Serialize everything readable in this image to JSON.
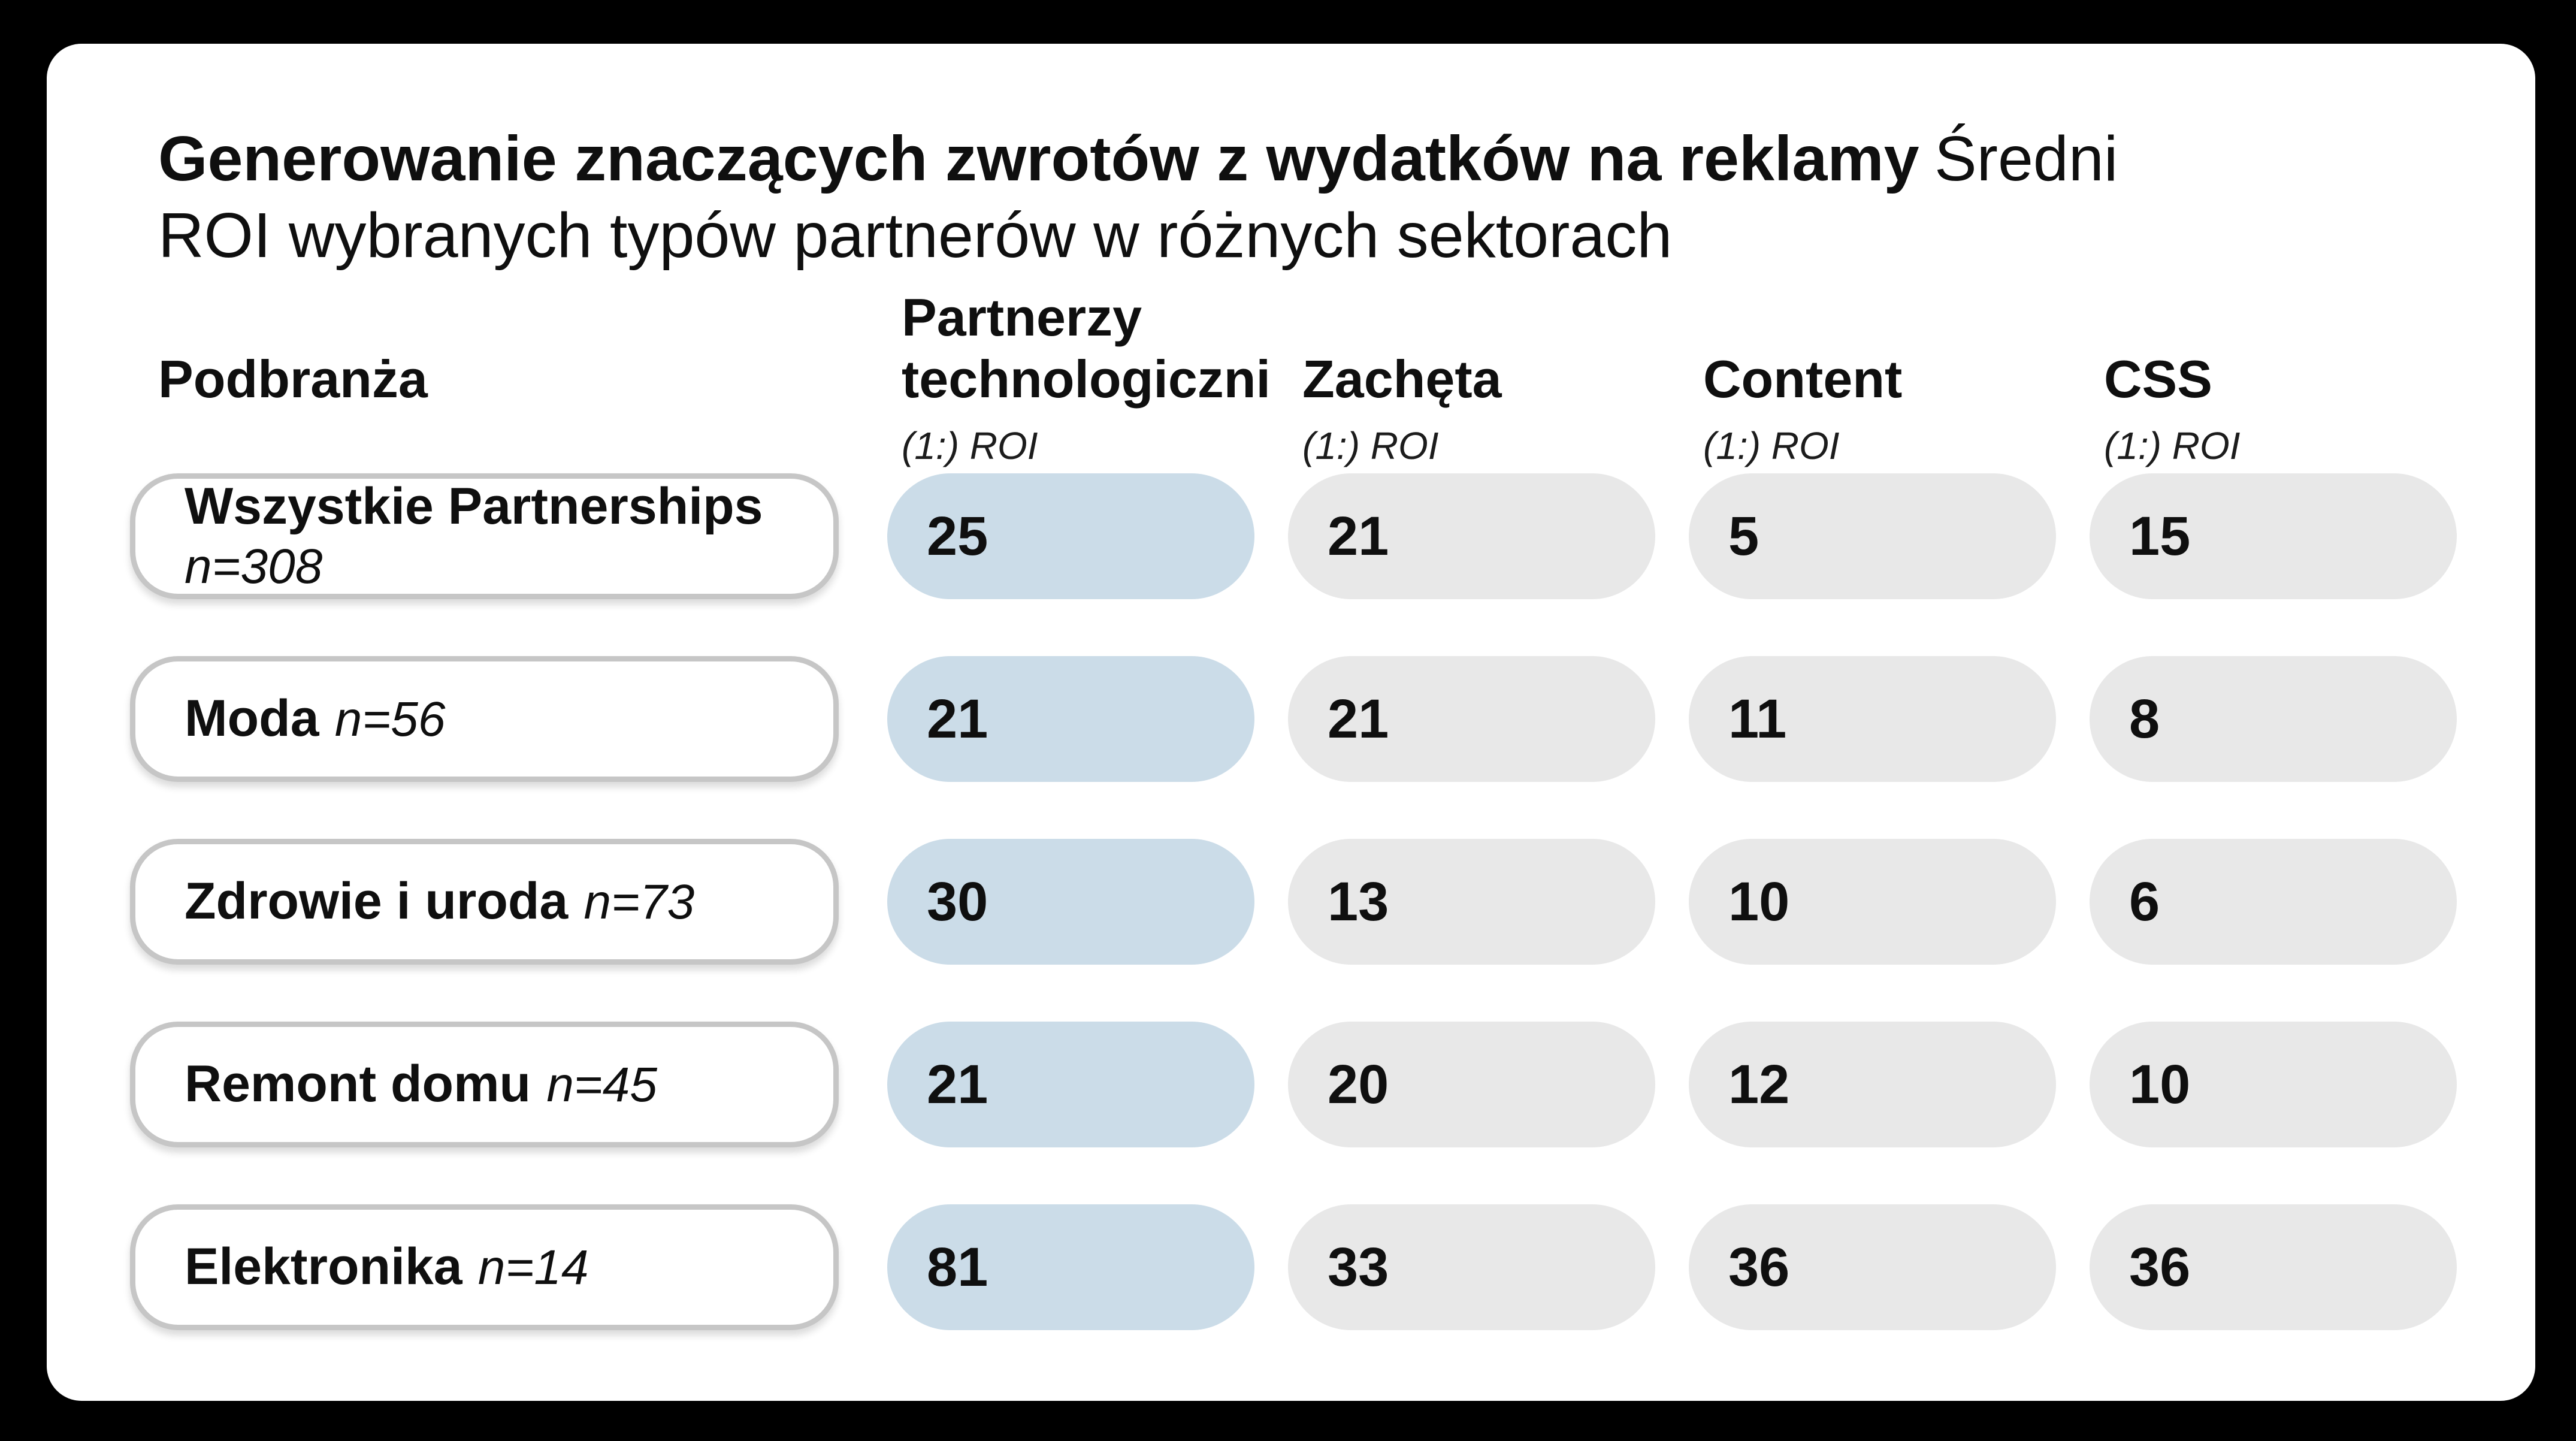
{
  "colors": {
    "background": "#000000",
    "card": "#ffffff",
    "accent_pill": "#cbdce8",
    "neutral_pill": "#e8e8e8",
    "label_pill_border": "#c6c6c6",
    "text": "#0f0f0f"
  },
  "title": {
    "line1_bold": "Generowanie znaczących zwrotów z wydatków na reklamy",
    "line1_regular": "Średni",
    "line2": "ROI wybranych typów partnerów w różnych sektorach"
  },
  "row_header_label": "Podbranża",
  "columns": [
    {
      "name": "Partnerzy technologiczni",
      "sub": "(1:) ROI",
      "highlighted": true
    },
    {
      "name": "Zachęta",
      "sub": "(1:) ROI",
      "highlighted": false
    },
    {
      "name": "Content",
      "sub": "(1:) ROI",
      "highlighted": false
    },
    {
      "name": "CSS",
      "sub": "(1:) ROI",
      "highlighted": false
    }
  ],
  "rows": [
    {
      "label": "Wszystkie Partnerships",
      "n": "n=308",
      "values": [
        "25",
        "21",
        "5",
        "15"
      ]
    },
    {
      "label": "Moda",
      "n": "n=56",
      "values": [
        "21",
        "21",
        "11",
        "8"
      ]
    },
    {
      "label": "Zdrowie i uroda",
      "n": "n=73",
      "values": [
        "30",
        "13",
        "10",
        "6"
      ]
    },
    {
      "label": "Remont domu",
      "n": "n=45",
      "values": [
        "21",
        "20",
        "12",
        "10"
      ]
    },
    {
      "label": "Elektronika",
      "n": "n=14",
      "values": [
        "81",
        "33",
        "36",
        "36"
      ]
    }
  ],
  "chart_data": {
    "type": "table",
    "title": "Generowanie znaczących zwrotów z wydatków na reklamy",
    "subtitle": "Średni ROI wybranych typów partnerów w różnych sektorach",
    "row_header": "Podbranża",
    "categories": [
      "Wszystkie Partnerships (n=308)",
      "Moda (n=56)",
      "Zdrowie i uroda (n=73)",
      "Remont domu (n=45)",
      "Elektronika (n=14)"
    ],
    "series": [
      {
        "name": "Partnerzy technologiczni (1:) ROI",
        "values": [
          25,
          21,
          30,
          21,
          81
        ]
      },
      {
        "name": "Zachęta (1:) ROI",
        "values": [
          21,
          21,
          13,
          20,
          33
        ]
      },
      {
        "name": "Content (1:) ROI",
        "values": [
          5,
          11,
          10,
          12,
          36
        ]
      },
      {
        "name": "CSS (1:) ROI",
        "values": [
          15,
          8,
          6,
          10,
          36
        ]
      }
    ],
    "legend_position": "none",
    "grid": false,
    "highlighted_series": "Partnerzy technologiczni (1:) ROI"
  }
}
